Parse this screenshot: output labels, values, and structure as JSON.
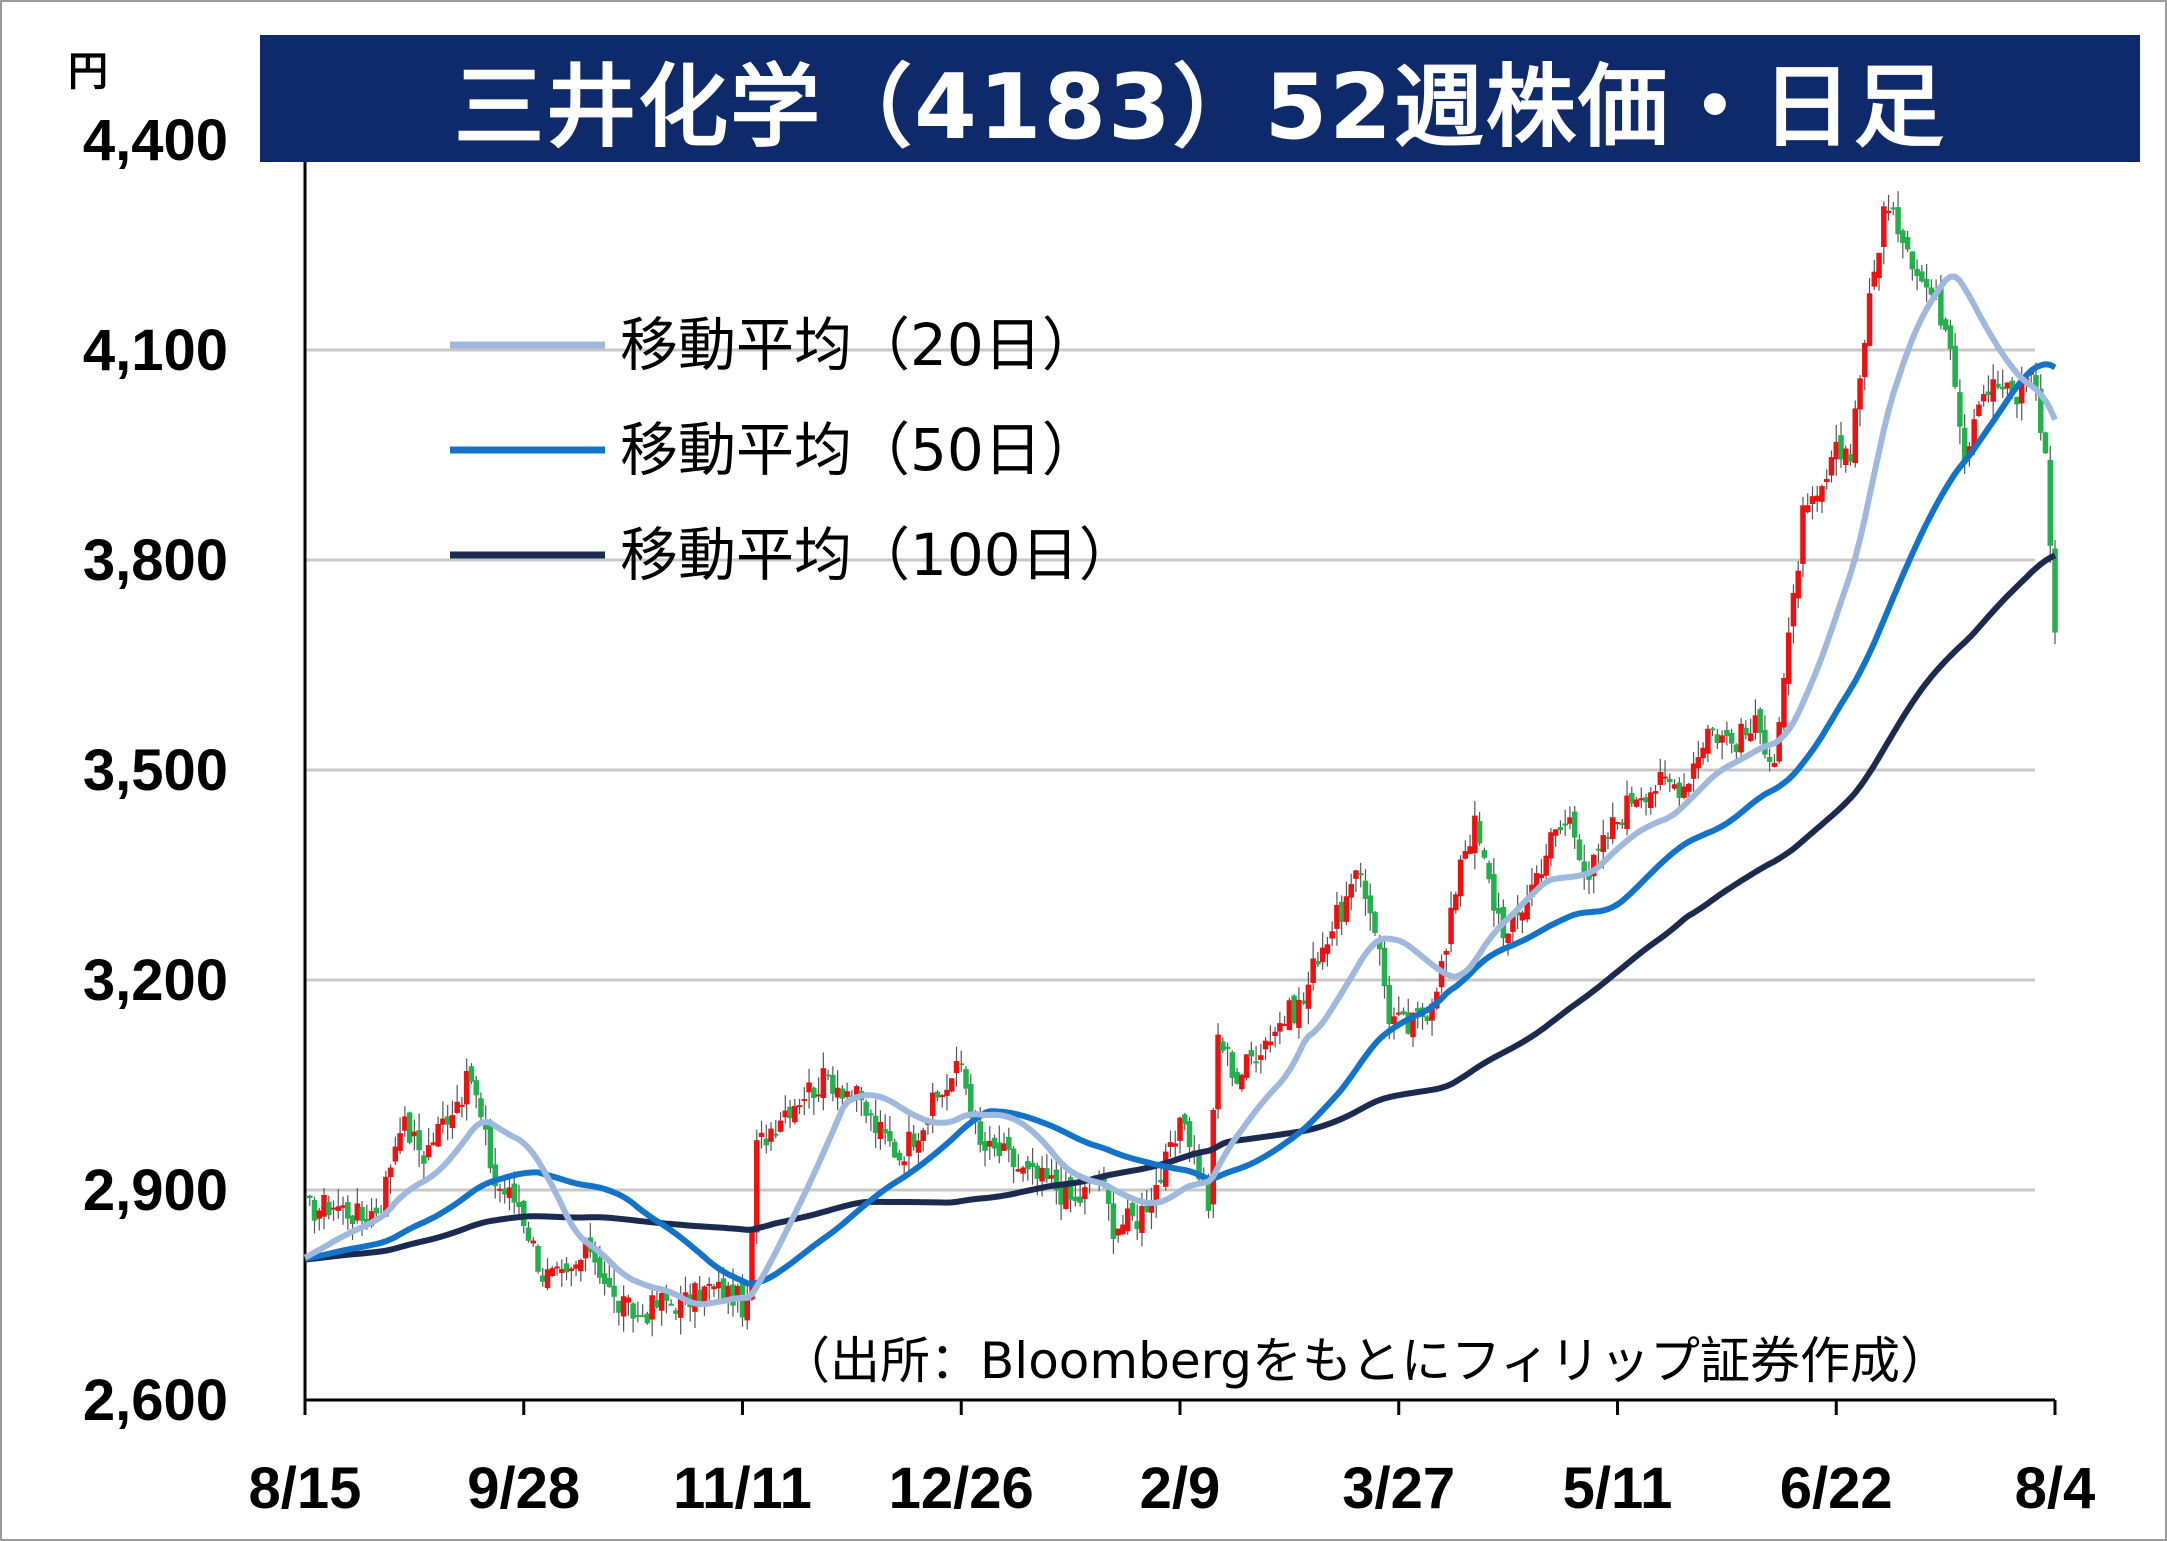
{
  "title": "三井化学（4183）52週株価・日足",
  "unit_label": "円",
  "source_note": "（出所：Bloombergをもとにフィリップ証券作成）",
  "colors": {
    "up": "#ee1111",
    "down": "#22b14c",
    "ma20": "#9fb8dd",
    "ma50": "#1273c9",
    "ma100": "#1a2b4f",
    "grid": "#c8c8c8",
    "title_bg": "#0f2a6b"
  },
  "chart_data": {
    "type": "candlestick",
    "title": "三井化学（4183）52週株価・日足",
    "ylabel": "円",
    "ylim": [
      2600,
      4400
    ],
    "yticks": [
      "2,600",
      "2,900",
      "3,200",
      "3,500",
      "3,800",
      "4,100",
      "4,400"
    ],
    "ytick_values": [
      2600,
      2900,
      3200,
      3500,
      3800,
      4100,
      4400
    ],
    "xticks": [
      "8/15",
      "9/28",
      "11/11",
      "12/26",
      "2/9",
      "3/27",
      "5/11",
      "6/22",
      "8/4"
    ],
    "legend": [
      {
        "name": "移動平均（20日）",
        "color": "#9fb8dd",
        "key": "ma20"
      },
      {
        "name": "移動平均（50日）",
        "color": "#1273c9",
        "key": "ma50"
      },
      {
        "name": "移動平均（100日）",
        "color": "#1a2b4f",
        "key": "ma100"
      }
    ],
    "grid": true,
    "legend_position": "upper-left",
    "close_keypoints": [
      [
        0,
        2870
      ],
      [
        6,
        2880
      ],
      [
        12,
        2860
      ],
      [
        16,
        2880
      ],
      [
        20,
        3000
      ],
      [
        25,
        2950
      ],
      [
        30,
        3010
      ],
      [
        35,
        3060
      ],
      [
        40,
        2910
      ],
      [
        45,
        2880
      ],
      [
        50,
        2780
      ],
      [
        55,
        2770
      ],
      [
        60,
        2820
      ],
      [
        65,
        2740
      ],
      [
        70,
        2720
      ],
      [
        75,
        2740
      ],
      [
        80,
        2740
      ],
      [
        85,
        2760
      ],
      [
        90,
        2750
      ],
      [
        93,
        2730
      ],
      [
        95,
        2960
      ],
      [
        100,
        3010
      ],
      [
        105,
        3040
      ],
      [
        110,
        3060
      ],
      [
        115,
        3040
      ],
      [
        120,
        2990
      ],
      [
        125,
        2950
      ],
      [
        130,
        3000
      ],
      [
        135,
        3050
      ],
      [
        138,
        3080
      ],
      [
        142,
        2960
      ],
      [
        147,
        2950
      ],
      [
        152,
        2920
      ],
      [
        157,
        2910
      ],
      [
        162,
        2880
      ],
      [
        167,
        2920
      ],
      [
        170,
        2850
      ],
      [
        175,
        2860
      ],
      [
        180,
        2920
      ],
      [
        185,
        3000
      ],
      [
        190,
        2880
      ],
      [
        192,
        3120
      ],
      [
        196,
        3060
      ],
      [
        200,
        3100
      ],
      [
        205,
        3140
      ],
      [
        210,
        3170
      ],
      [
        213,
        3240
      ],
      [
        218,
        3300
      ],
      [
        222,
        3350
      ],
      [
        225,
        3280
      ],
      [
        228,
        3150
      ],
      [
        232,
        3130
      ],
      [
        236,
        3160
      ],
      [
        240,
        3240
      ],
      [
        243,
        3380
      ],
      [
        246,
        3420
      ],
      [
        250,
        3310
      ],
      [
        253,
        3260
      ],
      [
        257,
        3320
      ],
      [
        262,
        3400
      ],
      [
        266,
        3430
      ],
      [
        270,
        3350
      ],
      [
        275,
        3420
      ],
      [
        280,
        3470
      ],
      [
        285,
        3480
      ],
      [
        290,
        3480
      ],
      [
        295,
        3560
      ],
      [
        300,
        3540
      ],
      [
        305,
        3560
      ],
      [
        309,
        3520
      ],
      [
        312,
        3680
      ],
      [
        315,
        3860
      ],
      [
        318,
        3880
      ],
      [
        322,
        3950
      ],
      [
        325,
        3960
      ],
      [
        328,
        4120
      ],
      [
        332,
        4300
      ],
      [
        336,
        4270
      ],
      [
        340,
        4200
      ],
      [
        343,
        4170
      ],
      [
        346,
        4120
      ],
      [
        349,
        3950
      ],
      [
        352,
        4040
      ],
      [
        356,
        4050
      ],
      [
        360,
        4030
      ],
      [
        363,
        4080
      ],
      [
        366,
        3950
      ],
      [
        368,
        3700
      ]
    ]
  }
}
